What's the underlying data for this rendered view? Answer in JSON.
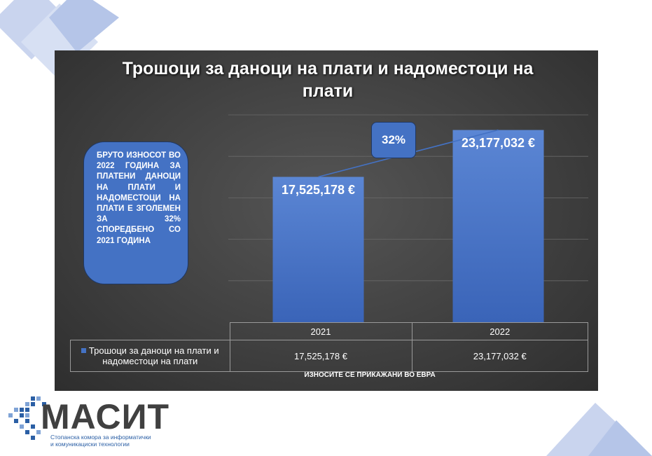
{
  "chart_data": {
    "type": "bar",
    "title": "Трошоци за даноци на плати и надоместоци на плати",
    "categories": [
      "2021",
      "2022"
    ],
    "series": [
      {
        "name": "Трошоци за даноци на плати и надоместоци на плати",
        "values": [
          17525178,
          23177032
        ],
        "value_labels": [
          "17,525,178 €",
          "23,177,032 €"
        ]
      }
    ],
    "ylim": [
      0,
      25000000
    ],
    "grid": true,
    "data_table": true,
    "growth_label": "32%",
    "color": "#4472c4"
  },
  "callout_text": "БРУТО ИЗНОСОТ ВО 2022 ГОДИНА ЗА ПЛАТЕНИ ДАНОЦИ НА ПЛАТИ И НАДОМЕСТОЦИ НА ПЛАТИ Е ЗГОЛЕМЕН ЗА 32% СПОРЕДБЕНО СО 2021 ГОДИНА",
  "footnote": "ИЗНОСИТЕ СЕ ПРИКАЖАНИ ВО ЕВРА",
  "logo": {
    "name": "МАСИТ",
    "subtitle_line1": "Стопанска комора за информатички",
    "subtitle_line2": "и комуникациски технологии"
  }
}
